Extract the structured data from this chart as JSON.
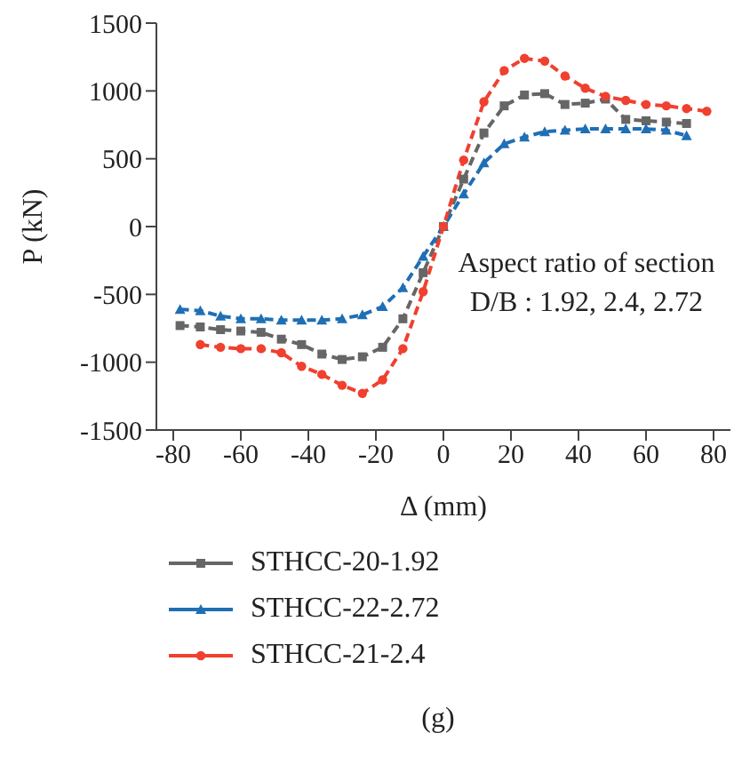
{
  "chart_data": {
    "type": "line",
    "xlabel": "Δ (mm)",
    "ylabel": "P (kN)",
    "xlim": [
      -85,
      85
    ],
    "ylim": [
      -1500,
      1500
    ],
    "xticks": [
      -80,
      -60,
      -40,
      -20,
      0,
      20,
      40,
      60,
      80
    ],
    "yticks": [
      -1500,
      -1000,
      -500,
      0,
      500,
      1000,
      1500
    ],
    "legend": "bottom",
    "line_style": "dashed",
    "annotations": [
      "Aspect ratio of section",
      "D/B : 1.92, 2.4, 2.72",
      "(g)"
    ],
    "series": [
      {
        "name": "STHCC-20-1.92",
        "color": "#666666",
        "marker": "square",
        "x": [
          -78,
          -72,
          -66,
          -60,
          -54,
          -48,
          -42,
          -36,
          -30,
          -24,
          -18,
          -12,
          -6,
          0,
          6,
          12,
          18,
          24,
          30,
          36,
          42,
          48,
          54,
          60,
          66,
          72
        ],
        "values": [
          -730,
          -740,
          -760,
          -770,
          -780,
          -830,
          -870,
          -940,
          -980,
          -960,
          -890,
          -680,
          -340,
          0,
          350,
          690,
          890,
          970,
          980,
          900,
          910,
          940,
          790,
          780,
          770,
          760
        ]
      },
      {
        "name": "STHCC-22-2.72",
        "color": "#1f6fb5",
        "marker": "triangle",
        "x": [
          -78,
          -72,
          -66,
          -60,
          -54,
          -48,
          -42,
          -36,
          -30,
          -24,
          -18,
          -12,
          -6,
          0,
          6,
          12,
          18,
          24,
          30,
          36,
          42,
          48,
          54,
          60,
          66,
          72
        ],
        "values": [
          -610,
          -620,
          -660,
          -680,
          -680,
          -690,
          -690,
          -690,
          -680,
          -650,
          -590,
          -450,
          -220,
          0,
          240,
          470,
          610,
          660,
          700,
          710,
          720,
          720,
          720,
          720,
          710,
          670
        ]
      },
      {
        "name": "STHCC-21-2.4",
        "color": "#f04030",
        "marker": "circle",
        "x": [
          -72,
          -66,
          -60,
          -54,
          -48,
          -42,
          -36,
          -30,
          -24,
          -18,
          -12,
          -6,
          0,
          6,
          12,
          18,
          24,
          30,
          36,
          42,
          48,
          54,
          60,
          66,
          72,
          78
        ],
        "values": [
          -870,
          -890,
          -900,
          -900,
          -930,
          -1030,
          -1090,
          -1170,
          -1230,
          -1130,
          -900,
          -480,
          0,
          490,
          920,
          1150,
          1240,
          1220,
          1110,
          1020,
          960,
          930,
          900,
          890,
          870,
          850
        ]
      }
    ]
  }
}
